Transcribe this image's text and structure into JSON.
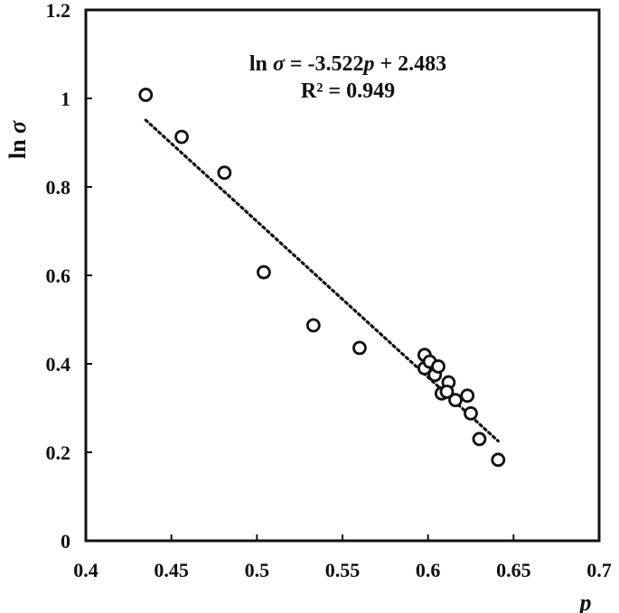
{
  "chart_data": {
    "type": "scatter",
    "xlabel": "p",
    "ylabel": "ln σ",
    "xlim": [
      0.4,
      0.7
    ],
    "ylim": [
      0,
      1.2
    ],
    "x_ticks": [
      "0.4",
      "0.45",
      "0.5",
      "0.55",
      "0.6",
      "0.65",
      "0.7"
    ],
    "y_ticks": [
      "0",
      "0.2",
      "0.4",
      "0.6",
      "0.8",
      "1",
      "1.2"
    ],
    "grid": false,
    "legend": "none",
    "marker": "open-circle",
    "series": [
      {
        "points": [
          {
            "x": 0.435,
            "y": 1.008
          },
          {
            "x": 0.456,
            "y": 0.913
          },
          {
            "x": 0.481,
            "y": 0.832
          },
          {
            "x": 0.504,
            "y": 0.607
          },
          {
            "x": 0.533,
            "y": 0.487
          },
          {
            "x": 0.56,
            "y": 0.436
          },
          {
            "x": 0.598,
            "y": 0.42
          },
          {
            "x": 0.598,
            "y": 0.39
          },
          {
            "x": 0.601,
            "y": 0.405
          },
          {
            "x": 0.604,
            "y": 0.375
          },
          {
            "x": 0.606,
            "y": 0.394
          },
          {
            "x": 0.608,
            "y": 0.333
          },
          {
            "x": 0.612,
            "y": 0.358
          },
          {
            "x": 0.611,
            "y": 0.337
          },
          {
            "x": 0.616,
            "y": 0.318
          },
          {
            "x": 0.623,
            "y": 0.328
          },
          {
            "x": 0.625,
            "y": 0.288
          },
          {
            "x": 0.63,
            "y": 0.23
          },
          {
            "x": 0.641,
            "y": 0.183
          }
        ]
      }
    ],
    "trendline": {
      "style": "dotted",
      "slope": -3.522,
      "intercept": 2.483,
      "x_range": [
        0.435,
        0.641
      ]
    },
    "annotation": {
      "equation": {
        "prefix": "ln ",
        "sigma": "σ",
        "middle": " = -3.522",
        "p": "p",
        "suffix": " + 2.483"
      },
      "r_squared": "R² = 0.949"
    },
    "colors": {
      "axis": "#111111",
      "marker": "#111111",
      "trendline": "#111111"
    }
  }
}
